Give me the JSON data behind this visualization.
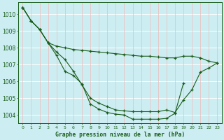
{
  "title": "Graphe pression niveau de la mer (hPa)",
  "bg_color": "#cceef2",
  "line_color": "#1a5c1a",
  "grid_color_h": "#ffffff",
  "grid_color_v": "#f0b8b8",
  "xlim": [
    -0.5,
    23.5
  ],
  "ylim": [
    1003.5,
    1010.7
  ],
  "yticks": [
    1004,
    1005,
    1006,
    1007,
    1008,
    1009,
    1010
  ],
  "xticks": [
    0,
    1,
    2,
    3,
    4,
    5,
    6,
    7,
    8,
    9,
    10,
    11,
    12,
    13,
    14,
    15,
    16,
    17,
    18,
    19,
    20,
    21,
    22,
    23
  ],
  "series": [
    [
      1010.4,
      1009.6,
      1009.1,
      1008.3,
      1008.1,
      1008.0,
      1007.9,
      1007.85,
      1007.8,
      1007.75,
      1007.7,
      1007.65,
      1007.6,
      1007.55,
      1007.5,
      1007.5,
      1007.45,
      1007.4,
      1007.4,
      1007.5,
      1007.5,
      1007.4,
      1007.2,
      1007.1
    ],
    [
      1010.4,
      1009.6,
      1009.1,
      1008.3,
      1007.75,
      1007.3,
      1006.6,
      1005.8,
      1005.0,
      1004.7,
      1004.5,
      1004.3,
      1004.25,
      1004.2,
      1004.2,
      1004.2,
      1004.2,
      1004.3,
      1004.15,
      1004.9,
      1005.5,
      1006.55,
      1006.8,
      1007.1
    ],
    [
      1010.4,
      1009.6,
      1009.1,
      1008.3,
      1007.55,
      1006.6,
      1006.35,
      1005.85,
      1004.65,
      1004.35,
      1004.15,
      1004.05,
      1004.0,
      1003.75,
      1003.75,
      1003.75,
      1003.75,
      1003.8,
      1004.1,
      1005.9,
      null,
      null,
      null,
      null
    ]
  ]
}
